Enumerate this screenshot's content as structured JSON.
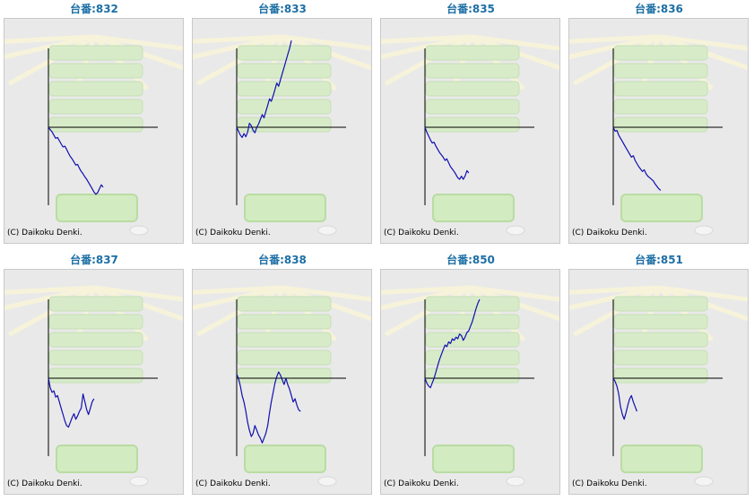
{
  "title_prefix": "台番:",
  "copyright": "(C) Daikoku Denki.",
  "colors": {
    "line": "#1010b0",
    "axis": "#000000",
    "title": "#1d6fa5",
    "panel": "#e9e9e9"
  },
  "chart_data": [
    {
      "type": "line",
      "title": "台番:832",
      "x": [
        0,
        1,
        2,
        3,
        4,
        5,
        6,
        7,
        8,
        9,
        10,
        11,
        12,
        13,
        14,
        15,
        16,
        17,
        18,
        19,
        20,
        21,
        22,
        23,
        24,
        25,
        26,
        27,
        28,
        29,
        30
      ],
      "values": [
        0,
        -3,
        -6,
        -10,
        -14,
        -13,
        -17,
        -21,
        -25,
        -24,
        -28,
        -33,
        -37,
        -40,
        -44,
        -48,
        -47,
        -52,
        -56,
        -59,
        -63,
        -66,
        -70,
        -74,
        -78,
        -82,
        -85,
        -83,
        -78,
        -73,
        -76
      ]
    },
    {
      "type": "line",
      "title": "台番:833",
      "x": [
        0,
        1,
        2,
        3,
        4,
        5,
        6,
        7,
        8,
        9,
        10,
        11,
        12,
        13,
        14,
        15,
        16,
        17,
        18,
        19,
        20,
        21,
        22,
        23,
        24,
        25,
        26,
        27,
        28,
        29,
        30
      ],
      "values": [
        0,
        -5,
        -10,
        -13,
        -8,
        -12,
        -6,
        5,
        2,
        -4,
        -7,
        0,
        4,
        10,
        16,
        12,
        20,
        28,
        36,
        33,
        40,
        48,
        56,
        52,
        60,
        68,
        76,
        84,
        92,
        100,
        110
      ]
    },
    {
      "type": "line",
      "title": "台番:835",
      "x": [
        0,
        1,
        2,
        3,
        4,
        5,
        6,
        7,
        8,
        9,
        10,
        11,
        12,
        13,
        14,
        15,
        16,
        17,
        18,
        19,
        20,
        21,
        22,
        23,
        24
      ],
      "values": [
        0,
        -6,
        -11,
        -16,
        -20,
        -19,
        -24,
        -28,
        -32,
        -35,
        -38,
        -42,
        -40,
        -45,
        -50,
        -53,
        -56,
        -60,
        -64,
        -66,
        -62,
        -66,
        -62,
        -55,
        -58
      ]
    },
    {
      "type": "line",
      "title": "台番:836",
      "x": [
        0,
        1,
        2,
        3,
        4,
        5,
        6,
        7,
        8,
        9,
        10,
        11,
        12,
        13,
        14,
        15,
        16,
        17,
        18,
        19,
        20,
        21,
        22,
        23,
        24,
        25,
        26
      ],
      "values": [
        0,
        -5,
        -4,
        -10,
        -14,
        -18,
        -22,
        -26,
        -30,
        -34,
        -38,
        -36,
        -42,
        -46,
        -50,
        -53,
        -56,
        -54,
        -59,
        -62,
        -64,
        -66,
        -68,
        -72,
        -75,
        -78,
        -80
      ]
    },
    {
      "type": "line",
      "title": "台番:837",
      "x": [
        0,
        1,
        2,
        3,
        4,
        5,
        6,
        7,
        8,
        9,
        10,
        11,
        12,
        13,
        14,
        15,
        16,
        17,
        18,
        19,
        20,
        21,
        22,
        23,
        24,
        25
      ],
      "values": [
        0,
        -12,
        -18,
        -16,
        -24,
        -22,
        -30,
        -38,
        -46,
        -54,
        -60,
        -62,
        -56,
        -50,
        -45,
        -52,
        -48,
        -42,
        -38,
        -20,
        -30,
        -40,
        -46,
        -38,
        -30,
        -26
      ]
    },
    {
      "type": "line",
      "title": "台番:838",
      "x": [
        0,
        1,
        2,
        3,
        4,
        5,
        6,
        7,
        8,
        9,
        10,
        11,
        12,
        13,
        14,
        15,
        16,
        17,
        18,
        19,
        20,
        21,
        22,
        23,
        24,
        25,
        26,
        27,
        28,
        29,
        30,
        31,
        32,
        33,
        34,
        35
      ],
      "values": [
        5,
        0,
        -10,
        -22,
        -30,
        -42,
        -56,
        -66,
        -74,
        -70,
        -60,
        -66,
        -72,
        -76,
        -82,
        -76,
        -70,
        -60,
        -44,
        -30,
        -18,
        -6,
        2,
        8,
        4,
        -2,
        -8,
        0,
        -8,
        -14,
        -22,
        -30,
        -26,
        -34,
        -40,
        -42
      ]
    },
    {
      "type": "line",
      "title": "台番:850",
      "x": [
        0,
        1,
        2,
        3,
        4,
        5,
        6,
        7,
        8,
        9,
        10,
        11,
        12,
        13,
        14,
        15,
        16,
        17,
        18,
        19,
        20,
        21,
        22,
        23,
        24,
        25,
        26,
        27,
        28,
        29,
        30
      ],
      "values": [
        0,
        -6,
        -10,
        -12,
        -6,
        0,
        8,
        16,
        24,
        30,
        36,
        42,
        40,
        46,
        44,
        50,
        48,
        52,
        50,
        56,
        54,
        48,
        52,
        58,
        60,
        66,
        72,
        80,
        88,
        95,
        100
      ]
    },
    {
      "type": "line",
      "title": "台番:851",
      "x": [
        0,
        1,
        2,
        3,
        4,
        5,
        6,
        7,
        8,
        9,
        10,
        11,
        12,
        13
      ],
      "values": [
        0,
        -4,
        -10,
        -20,
        -36,
        -46,
        -52,
        -44,
        -34,
        -26,
        -22,
        -30,
        -36,
        -42
      ]
    }
  ]
}
